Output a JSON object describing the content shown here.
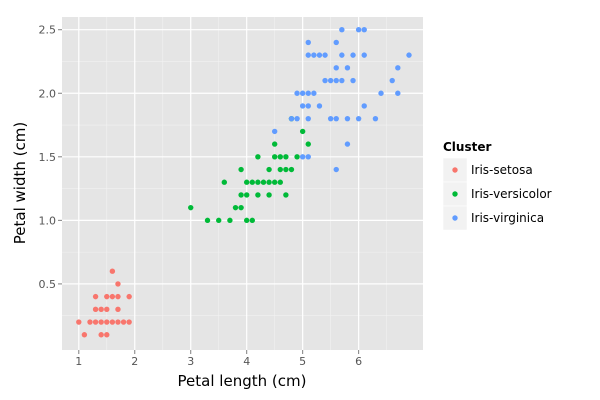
{
  "chart_data": {
    "type": "scatter",
    "title": "",
    "xlabel": "Petal length (cm)",
    "ylabel": "Petal width (cm)",
    "xlim": [
      0.7,
      7.15
    ],
    "ylim": [
      -0.02,
      2.6
    ],
    "x_ticks": [
      1,
      2,
      3,
      4,
      5,
      6
    ],
    "x_tick_labels": [
      "1",
      "2",
      "3",
      "4",
      "5",
      "6"
    ],
    "y_ticks": [
      0.5,
      1.0,
      1.5,
      2.0,
      2.5
    ],
    "y_tick_labels": [
      "0.5",
      "1.0",
      "1.5",
      "2.0",
      "2.5"
    ],
    "grid": true,
    "legend": {
      "title": "Cluster",
      "position": "right"
    },
    "series": [
      {
        "name": "Iris-setosa",
        "color": "#F8766D",
        "points": [
          [
            1.0,
            0.2
          ],
          [
            1.1,
            0.1
          ],
          [
            1.2,
            0.2
          ],
          [
            1.3,
            0.2
          ],
          [
            1.3,
            0.3
          ],
          [
            1.3,
            0.4
          ],
          [
            1.4,
            0.1
          ],
          [
            1.4,
            0.2
          ],
          [
            1.4,
            0.3
          ],
          [
            1.5,
            0.1
          ],
          [
            1.5,
            0.2
          ],
          [
            1.5,
            0.3
          ],
          [
            1.5,
            0.4
          ],
          [
            1.6,
            0.2
          ],
          [
            1.6,
            0.4
          ],
          [
            1.6,
            0.6
          ],
          [
            1.7,
            0.2
          ],
          [
            1.7,
            0.3
          ],
          [
            1.7,
            0.4
          ],
          [
            1.7,
            0.5
          ],
          [
            1.8,
            0.2
          ],
          [
            1.9,
            0.2
          ],
          [
            1.9,
            0.4
          ]
        ]
      },
      {
        "name": "Iris-versicolor",
        "color": "#00BA38",
        "points": [
          [
            3.0,
            1.1
          ],
          [
            3.3,
            1.0
          ],
          [
            3.5,
            1.0
          ],
          [
            3.6,
            1.3
          ],
          [
            3.7,
            1.0
          ],
          [
            3.8,
            1.1
          ],
          [
            3.9,
            1.1
          ],
          [
            3.9,
            1.2
          ],
          [
            3.9,
            1.4
          ],
          [
            4.0,
            1.0
          ],
          [
            4.0,
            1.2
          ],
          [
            4.0,
            1.3
          ],
          [
            4.1,
            1.0
          ],
          [
            4.1,
            1.3
          ],
          [
            4.2,
            1.2
          ],
          [
            4.2,
            1.3
          ],
          [
            4.2,
            1.5
          ],
          [
            4.3,
            1.3
          ],
          [
            4.4,
            1.2
          ],
          [
            4.4,
            1.3
          ],
          [
            4.4,
            1.4
          ],
          [
            4.5,
            1.3
          ],
          [
            4.5,
            1.5
          ],
          [
            4.5,
            1.6
          ],
          [
            4.6,
            1.3
          ],
          [
            4.6,
            1.4
          ],
          [
            4.6,
            1.5
          ],
          [
            4.7,
            1.2
          ],
          [
            4.7,
            1.4
          ],
          [
            4.7,
            1.5
          ],
          [
            4.8,
            1.4
          ],
          [
            4.8,
            1.8
          ],
          [
            4.9,
            1.5
          ],
          [
            5.0,
            1.7
          ],
          [
            5.1,
            1.6
          ]
        ]
      },
      {
        "name": "Iris-virginica",
        "color": "#619CFF",
        "points": [
          [
            4.5,
            1.7
          ],
          [
            4.8,
            1.8
          ],
          [
            4.9,
            1.8
          ],
          [
            4.9,
            2.0
          ],
          [
            5.0,
            1.5
          ],
          [
            5.0,
            1.9
          ],
          [
            5.0,
            2.0
          ],
          [
            5.1,
            1.5
          ],
          [
            5.1,
            1.8
          ],
          [
            5.1,
            1.9
          ],
          [
            5.1,
            2.0
          ],
          [
            5.1,
            2.3
          ],
          [
            5.1,
            2.4
          ],
          [
            5.2,
            2.0
          ],
          [
            5.2,
            2.3
          ],
          [
            5.3,
            1.9
          ],
          [
            5.3,
            2.3
          ],
          [
            5.4,
            2.1
          ],
          [
            5.4,
            2.3
          ],
          [
            5.5,
            1.8
          ],
          [
            5.5,
            2.1
          ],
          [
            5.6,
            1.4
          ],
          [
            5.6,
            1.8
          ],
          [
            5.6,
            2.1
          ],
          [
            5.6,
            2.2
          ],
          [
            5.6,
            2.4
          ],
          [
            5.7,
            2.1
          ],
          [
            5.7,
            2.3
          ],
          [
            5.7,
            2.5
          ],
          [
            5.8,
            1.6
          ],
          [
            5.8,
            1.8
          ],
          [
            5.8,
            2.2
          ],
          [
            5.9,
            2.1
          ],
          [
            5.9,
            2.3
          ],
          [
            6.0,
            1.8
          ],
          [
            6.0,
            2.5
          ],
          [
            6.1,
            1.9
          ],
          [
            6.1,
            2.3
          ],
          [
            6.1,
            2.5
          ],
          [
            6.3,
            1.8
          ],
          [
            6.4,
            2.0
          ],
          [
            6.6,
            2.1
          ],
          [
            6.7,
            2.0
          ],
          [
            6.7,
            2.2
          ],
          [
            6.9,
            2.3
          ]
        ]
      }
    ]
  }
}
